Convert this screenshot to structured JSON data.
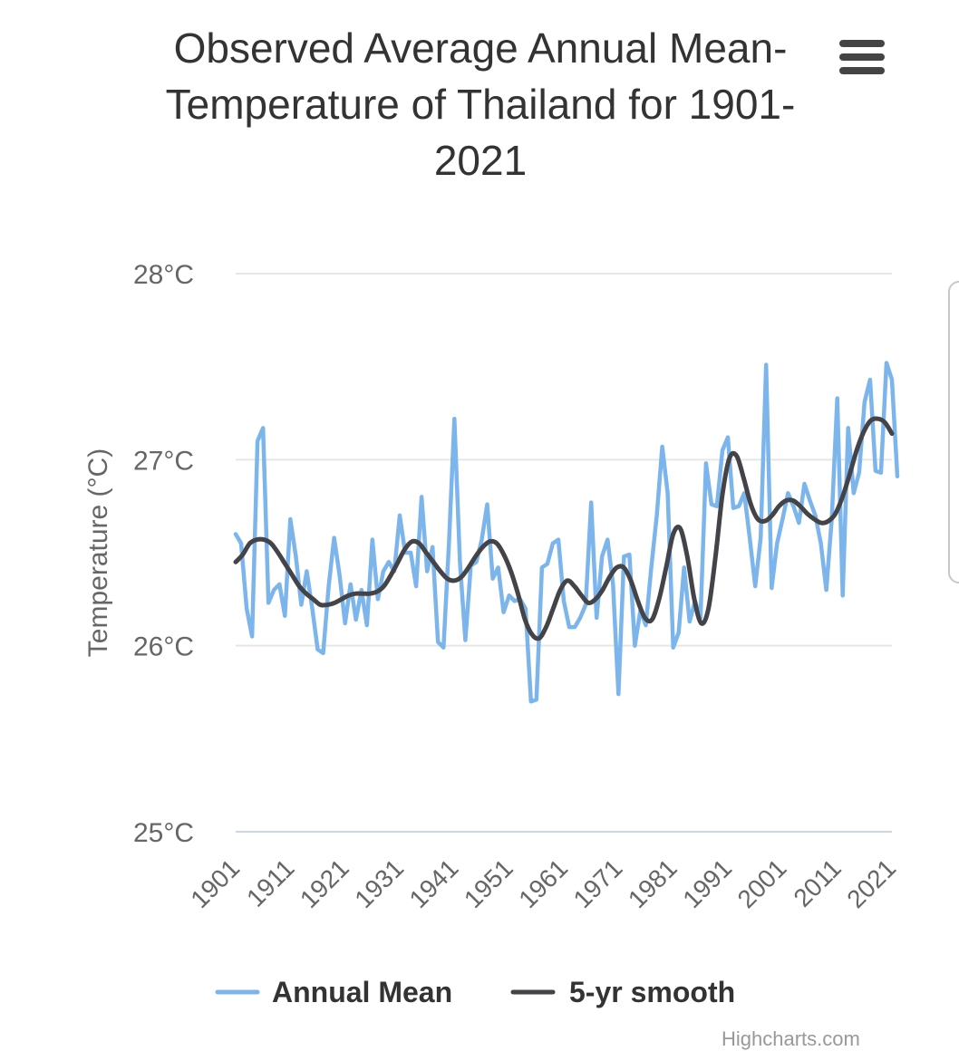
{
  "title": "Observed Average Annual Mean-Temperature of Thailand for 1901-2021",
  "credits": "Highcharts.com",
  "chart_data": {
    "type": "line",
    "title": "Observed Average Annual Mean-Temperature of Thailand for 1901-2021",
    "xlabel": "",
    "ylabel": "Temperature (°C)",
    "xlim": [
      1901,
      2021
    ],
    "ylim": [
      25,
      28
    ],
    "yticks": [
      25,
      26,
      27,
      28
    ],
    "ytick_labels": [
      "25°C",
      "26°C",
      "27°C",
      "28°C"
    ],
    "xticks": [
      1901,
      1911,
      1921,
      1931,
      1941,
      1951,
      1961,
      1971,
      1981,
      1991,
      2001,
      2011,
      2021
    ],
    "xtick_labels": [
      "1901",
      "1911",
      "1921",
      "1931",
      "1941",
      "1951",
      "1961",
      "1971",
      "1981",
      "1991",
      "2001",
      "2011",
      "2021"
    ],
    "grid": true,
    "legend": "bottom-center",
    "x_start": 1901,
    "series": [
      {
        "name": "Annual Mean",
        "color": "#7cb5ec",
        "values": [
          26.6,
          26.55,
          26.2,
          26.05,
          27.1,
          27.17,
          26.23,
          26.3,
          26.33,
          26.16,
          26.68,
          26.48,
          26.22,
          26.4,
          26.2,
          25.98,
          25.96,
          26.32,
          26.58,
          26.38,
          26.12,
          26.33,
          26.14,
          26.3,
          26.11,
          26.57,
          26.25,
          26.4,
          26.45,
          26.4,
          26.7,
          26.5,
          26.5,
          26.32,
          26.8,
          26.4,
          26.53,
          26.02,
          25.99,
          26.55,
          27.22,
          26.45,
          26.03,
          26.43,
          26.45,
          26.57,
          26.76,
          26.36,
          26.42,
          26.18,
          26.27,
          26.24,
          26.25,
          26.2,
          25.7,
          25.71,
          26.42,
          26.44,
          26.55,
          26.57,
          26.24,
          26.1,
          26.1,
          26.15,
          26.22,
          26.77,
          26.15,
          26.48,
          26.57,
          26.33,
          25.74,
          26.48,
          26.49,
          26.0,
          26.19,
          26.11,
          26.42,
          26.7,
          27.07,
          26.82,
          25.99,
          26.07,
          26.42,
          26.13,
          26.24,
          26.15,
          26.98,
          26.76,
          26.75,
          27.05,
          27.12,
          26.74,
          26.75,
          26.82,
          26.58,
          26.32,
          26.58,
          27.51,
          26.31,
          26.55,
          26.68,
          26.82,
          26.75,
          26.66,
          26.87,
          26.78,
          26.7,
          26.55,
          26.3,
          26.68,
          27.33,
          26.27,
          27.17,
          26.82,
          26.93,
          27.31,
          27.43,
          26.94,
          26.93,
          27.52,
          27.43,
          26.91
        ]
      },
      {
        "name": "5-yr smooth",
        "color": "#434348",
        "values": [
          26.45,
          26.49,
          26.55,
          26.57,
          26.57,
          26.55,
          26.5,
          26.44,
          26.38,
          26.32,
          26.28,
          26.25,
          26.22,
          26.22,
          26.23,
          26.25,
          26.27,
          26.28,
          26.28,
          26.28,
          26.29,
          26.32,
          26.38,
          26.45,
          26.52,
          26.56,
          26.55,
          26.5,
          26.45,
          26.4,
          26.36,
          26.35,
          26.37,
          26.42,
          26.48,
          26.53,
          26.56,
          26.55,
          26.49,
          26.4,
          26.28,
          26.14,
          26.06,
          26.04,
          26.1,
          26.2,
          26.3,
          26.35,
          26.32,
          26.27,
          26.23,
          26.25,
          26.3,
          26.37,
          26.42,
          26.42,
          26.35,
          26.24,
          26.15,
          26.14,
          26.25,
          26.42,
          26.6,
          26.63,
          26.48,
          26.25,
          26.12,
          26.2,
          26.48,
          26.82,
          27.01,
          27.02,
          26.9,
          26.76,
          26.68,
          26.67,
          26.7,
          26.75,
          26.78,
          26.78,
          26.75,
          26.71,
          26.68,
          26.66,
          26.67,
          26.71,
          26.8,
          26.92,
          27.05,
          27.15,
          27.21,
          27.22,
          27.2,
          27.14
        ]
      }
    ]
  },
  "legend": {
    "items": [
      {
        "label": "Annual Mean",
        "color": "#7cb5ec"
      },
      {
        "label": "5-yr smooth",
        "color": "#434348"
      }
    ]
  }
}
